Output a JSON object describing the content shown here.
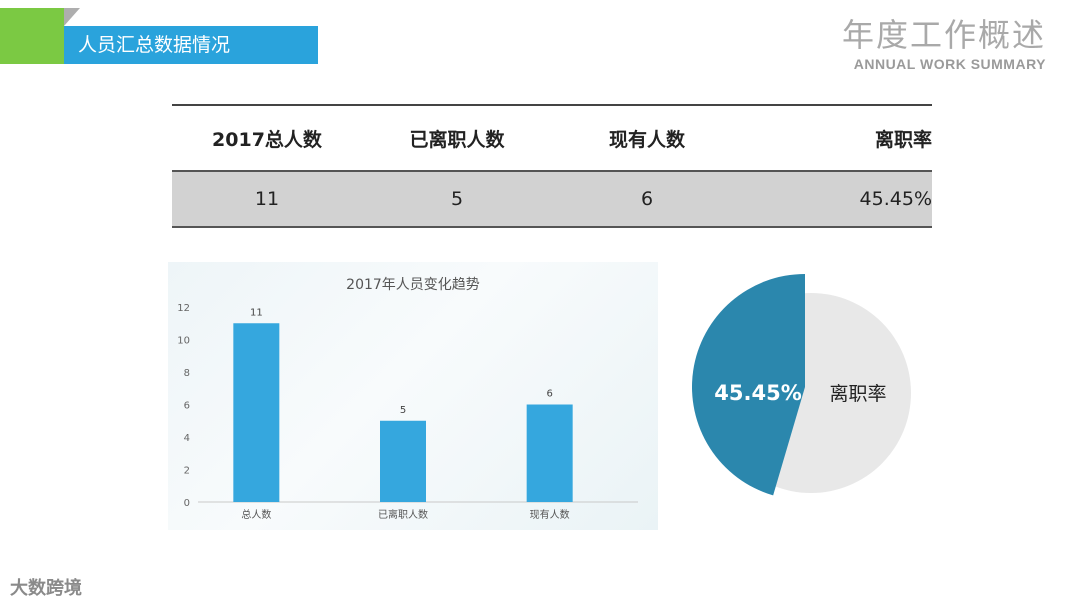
{
  "header": {
    "section_title": "人员汇总数据情况",
    "title_cn": "年度工作概述",
    "title_en": "ANNUAL WORK SUMMARY"
  },
  "summary_table": {
    "headers": [
      "2017总人数",
      "已离职人数",
      "现有人数",
      "离职率"
    ],
    "values": [
      "11",
      "5",
      "6",
      "45.45%"
    ]
  },
  "chart_data": [
    {
      "type": "bar",
      "title": "2017年人员变化趋势",
      "categories": [
        "总人数",
        "已离职人数",
        "现有人数"
      ],
      "values": [
        11,
        5,
        6
      ],
      "data_labels": [
        "11",
        "5",
        "6"
      ],
      "yticks": [
        "0",
        "2",
        "4",
        "6",
        "8",
        "10",
        "12"
      ],
      "ylim": [
        0,
        12
      ],
      "grid": false,
      "color": "#35a7de"
    },
    {
      "type": "pie",
      "values": [
        45.45,
        54.55
      ],
      "labels": [
        "45.45%",
        "离职率"
      ],
      "colors": [
        "#2b87ad",
        "#e8e8e8"
      ]
    }
  ],
  "watermark": "大数跨境"
}
